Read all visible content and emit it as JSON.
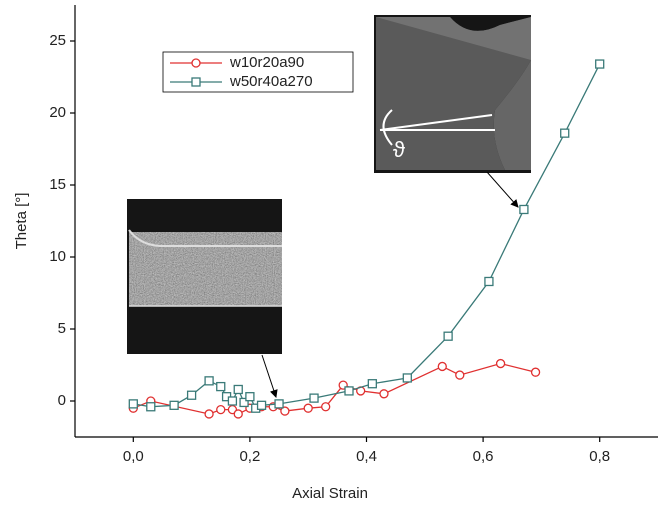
{
  "chart_data": {
    "type": "line",
    "x_label": "Axial Strain",
    "y_label": "Theta [°]",
    "xlim": [
      -0.1,
      0.9
    ],
    "ylim": [
      -2.5,
      27.5
    ],
    "xticks": [
      {
        "value": 0,
        "label": "0,0"
      },
      {
        "value": 0.2,
        "label": "0,2"
      },
      {
        "value": 0.4,
        "label": "0,4"
      },
      {
        "value": 0.6,
        "label": "0,6"
      },
      {
        "value": 0.8,
        "label": "0,8"
      }
    ],
    "yticks": [
      0,
      5,
      10,
      15,
      20,
      25
    ],
    "legend_position": "upper-left",
    "annotations": [
      "ϑ"
    ],
    "series": [
      {
        "name": "w10r20a90",
        "color": "#e03030",
        "marker": "circle",
        "x": [
          0.0,
          0.03,
          0.13,
          0.15,
          0.17,
          0.18,
          0.2,
          0.22,
          0.24,
          0.26,
          0.3,
          0.33,
          0.36,
          0.39,
          0.43,
          0.53,
          0.56,
          0.63,
          0.69
        ],
        "values": [
          -0.5,
          0.0,
          -0.9,
          -0.6,
          -0.6,
          -0.9,
          -0.5,
          -0.4,
          -0.4,
          -0.7,
          -0.5,
          -0.4,
          1.1,
          0.7,
          0.5,
          2.4,
          1.8,
          2.6,
          2.0
        ]
      },
      {
        "name": "w50r40a270",
        "color": "#3a7a78",
        "marker": "square",
        "x": [
          0.0,
          0.03,
          0.07,
          0.1,
          0.13,
          0.15,
          0.16,
          0.17,
          0.18,
          0.19,
          0.2,
          0.21,
          0.22,
          0.25,
          0.31,
          0.37,
          0.41,
          0.47,
          0.54,
          0.61,
          0.67,
          0.74,
          0.8
        ],
        "values": [
          -0.2,
          -0.4,
          -0.3,
          0.4,
          1.4,
          1.0,
          0.3,
          0.0,
          0.8,
          -0.1,
          0.3,
          -0.5,
          -0.3,
          -0.2,
          0.2,
          0.7,
          1.2,
          1.6,
          4.5,
          8.3,
          13.3,
          18.6,
          23.4
        ]
      }
    ]
  }
}
